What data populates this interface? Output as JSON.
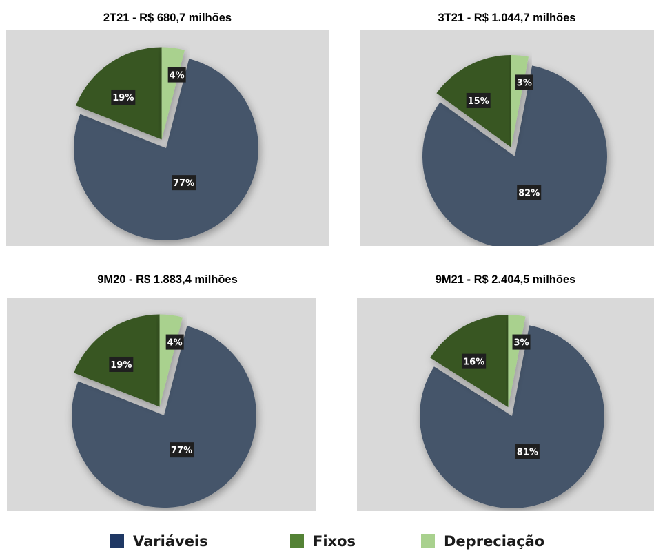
{
  "colors": {
    "variaveis": "#44546a",
    "fixos": "#375623",
    "depreciacao": "#a9d18e",
    "panel_bg": "#d9d9d9",
    "label_bg": "#1f1f1f"
  },
  "legend": [
    {
      "name": "Variáveis",
      "color_key": "variaveis",
      "legend_color": "#1f3864"
    },
    {
      "name": "Fixos",
      "color_key": "fixos",
      "legend_color": "#548235"
    },
    {
      "name": "Depreciação",
      "color_key": "depreciacao",
      "legend_color": "#a9d18e"
    }
  ],
  "chart_data": [
    {
      "type": "pie",
      "title": "2T21 - R$ 680,7 milhões",
      "categories": [
        "Variáveis",
        "Fixos",
        "Depreciação"
      ],
      "values": [
        77,
        19,
        4
      ],
      "labels": [
        "77%",
        "19%",
        "4%"
      ],
      "exploded": [
        "Fixos",
        "Depreciação"
      ]
    },
    {
      "type": "pie",
      "title": "3T21 - R$ 1.044,7 milhões",
      "categories": [
        "Variáveis",
        "Fixos",
        "Depreciação"
      ],
      "values": [
        82,
        15,
        3
      ],
      "labels": [
        "82%",
        "15%",
        "3%"
      ],
      "exploded": [
        "Fixos",
        "Depreciação"
      ]
    },
    {
      "type": "pie",
      "title": "9M20 - R$ 1.883,4 milhões",
      "categories": [
        "Variáveis",
        "Fixos",
        "Depreciação"
      ],
      "values": [
        77,
        19,
        4
      ],
      "labels": [
        "77%",
        "19%",
        "4%"
      ],
      "exploded": [
        "Fixos",
        "Depreciação"
      ]
    },
    {
      "type": "pie",
      "title": "9M21 - R$ 2.404,5 milhões",
      "categories": [
        "Variáveis",
        "Fixos",
        "Depreciação"
      ],
      "values": [
        81,
        16,
        3
      ],
      "labels": [
        "81%",
        "16%",
        "3%"
      ],
      "exploded": [
        "Fixos",
        "Depreciação"
      ]
    }
  ]
}
